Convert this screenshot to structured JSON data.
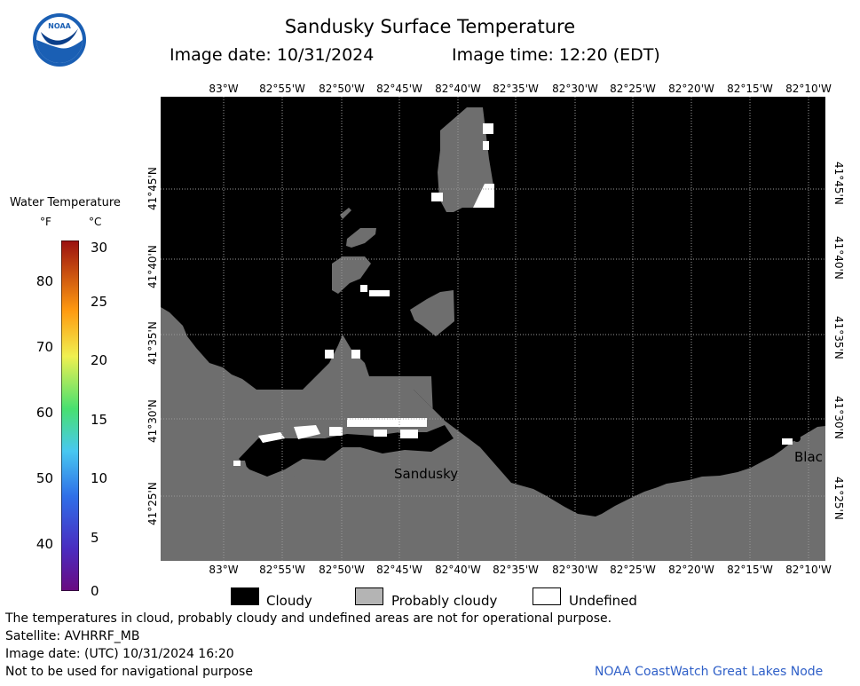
{
  "header": {
    "title": "Sandusky Surface Temperature",
    "image_date": "Image date: 10/31/2024",
    "image_time": "Image time: 12:20 (EDT)"
  },
  "logo": {
    "text": "NOAA",
    "icon": "noaa-logo-icon"
  },
  "map": {
    "lon_labels_top": [
      "83°W",
      "82°55'W",
      "82°50'W",
      "82°45'W",
      "82°40'W",
      "82°35'W",
      "82°30'W",
      "82°25'W",
      "82°20'W",
      "82°15'W",
      "82°10'W"
    ],
    "lon_labels_bottom": [
      "83°W",
      "82°55'W",
      "82°50'W",
      "82°45'W",
      "82°40'W",
      "82°35'W",
      "82°30'W",
      "82°25'W",
      "82°20'W",
      "82°15'W",
      "82°10'W"
    ],
    "lat_labels_left": [
      "41°45'N",
      "41°40'N",
      "41°35'N",
      "41°30'N",
      "41°25'N"
    ],
    "lat_labels_right": [
      "41°45'N",
      "41°40'N",
      "41°35'N",
      "41°30'N",
      "41°25'N"
    ],
    "place_labels": {
      "sandusky": "Sandusky",
      "black_river": "Blac"
    },
    "colors": {
      "cloudy": "#000000",
      "land": "#6e6e6e",
      "grid": "#9a9a9a",
      "undefined": "#ffffff"
    }
  },
  "legend": {
    "title": "Water Temperature",
    "unit_f": "°F",
    "unit_c": "°C",
    "f_ticks": [
      "80",
      "70",
      "60",
      "50",
      "40"
    ],
    "c_ticks": [
      "30",
      "25",
      "20",
      "15",
      "10",
      "5",
      "0"
    ],
    "colormap_icon": "temperature-colorbar"
  },
  "key": {
    "cloudy": "Cloudy",
    "probably_cloudy": "Probably cloudy",
    "undefined": "Undefined"
  },
  "footer": {
    "disclaimer": "The temperatures in cloud, probably cloudy and undefined areas are not for operational purpose.",
    "satellite": "Satellite: AVHRRF_MB",
    "utc_date": "Image date: (UTC) 10/31/2024  16:20",
    "navigation": "Not to be used for navigational purpose",
    "credit": "NOAA CoastWatch Great Lakes Node"
  }
}
